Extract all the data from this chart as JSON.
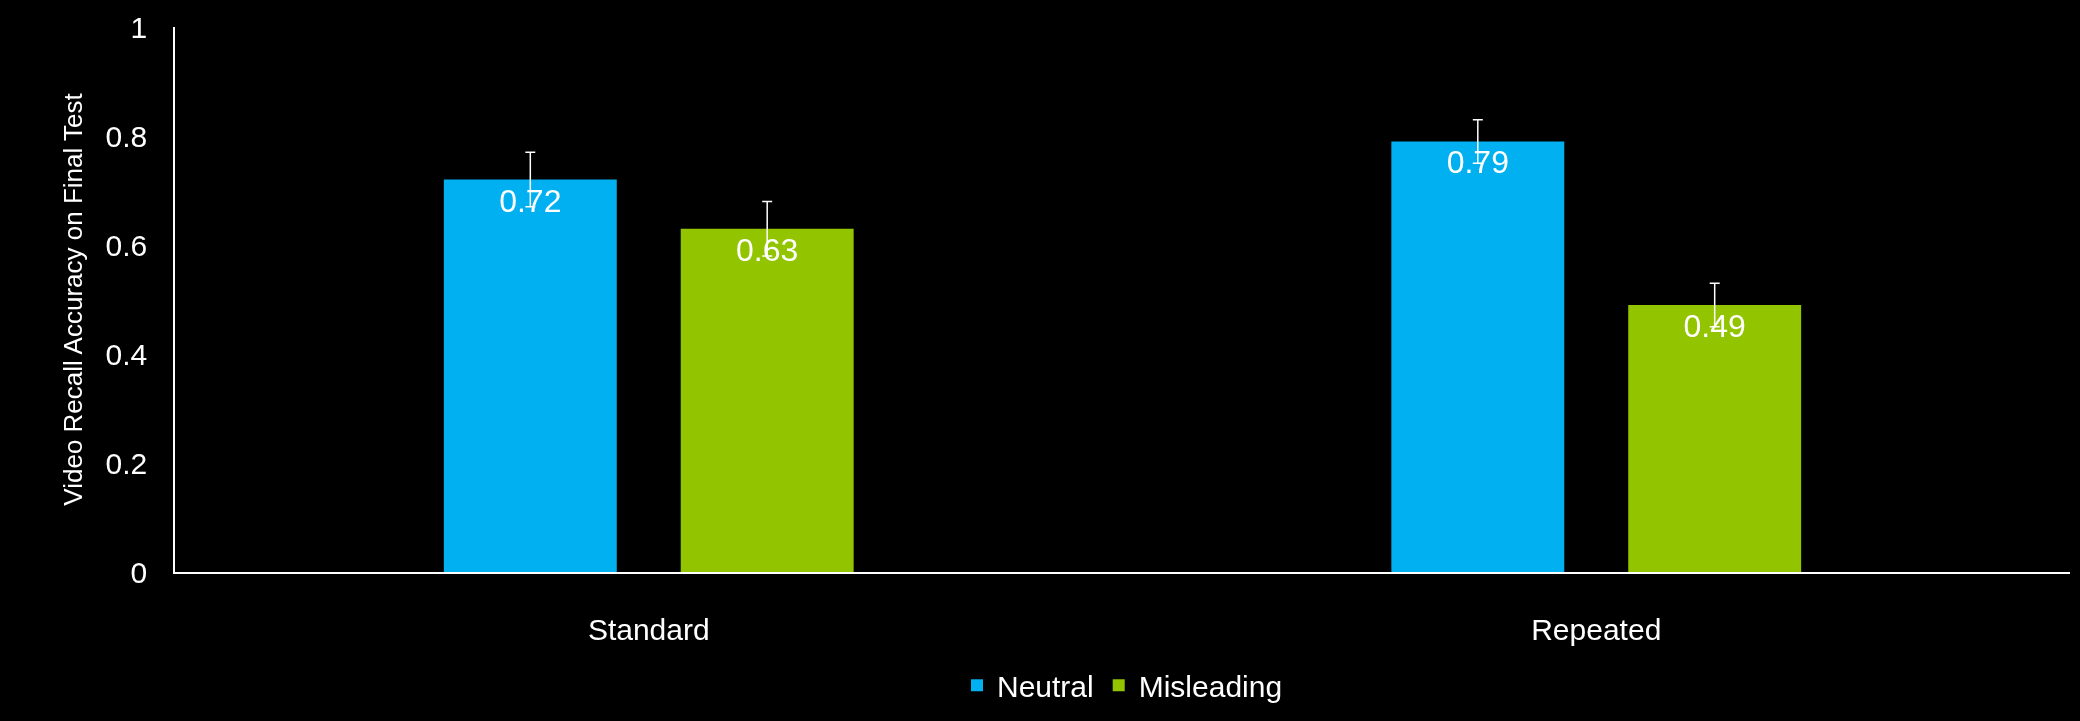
{
  "chart_data": {
    "type": "bar",
    "ylabel": "Video Recall Accuracy on Final Test",
    "categories": [
      "Standard",
      "Repeated"
    ],
    "series": [
      {
        "name": "Neutral",
        "color": "#00b0f0",
        "values": [
          0.72,
          0.79
        ],
        "errors": [
          0.05,
          0.04
        ]
      },
      {
        "name": "Misleading",
        "color": "#92c400",
        "values": [
          0.63,
          0.49
        ],
        "errors": [
          0.05,
          0.04
        ]
      }
    ],
    "ylim": [
      0,
      1
    ],
    "yticks": [
      0,
      0.2,
      0.4,
      0.6,
      0.8,
      1
    ],
    "grid": false,
    "legend": "bottom",
    "data_labels": true
  }
}
